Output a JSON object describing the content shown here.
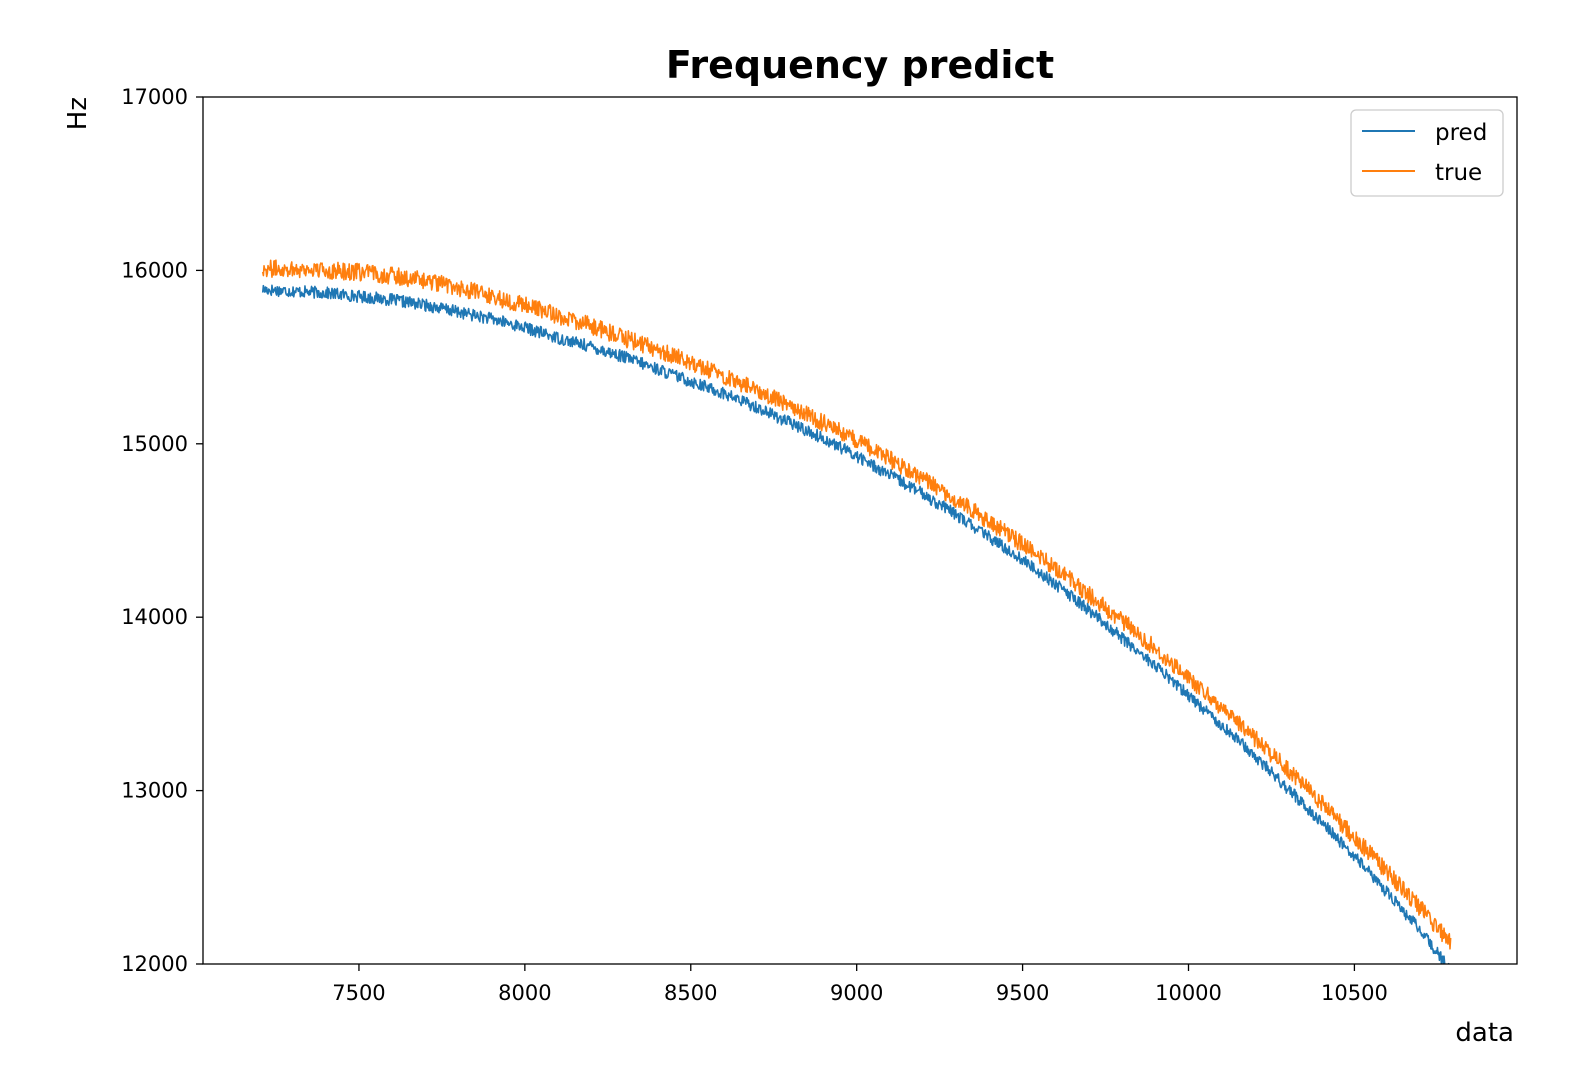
{
  "chart_data": {
    "type": "line",
    "title": "Frequency predict",
    "xlabel": "data",
    "ylabel": "Hz",
    "xlim": [
      7030,
      10990
    ],
    "ylim": [
      12000,
      17000
    ],
    "xticks": [
      7500,
      8000,
      8500,
      9000,
      9500,
      10000,
      10500
    ],
    "yticks": [
      12000,
      13000,
      14000,
      15000,
      16000,
      17000
    ],
    "x_range": [
      7210,
      10790
    ],
    "series": [
      {
        "name": "pred",
        "color": "#1f77b4",
        "x": [
          7210,
          7300,
          7400,
          7500,
          7600,
          7700,
          7800,
          7900,
          8000,
          8100,
          8200,
          8300,
          8400,
          8500,
          8600,
          8700,
          8800,
          8900,
          9000,
          9100,
          9200,
          9300,
          9400,
          9500,
          9600,
          9700,
          9800,
          9900,
          10000,
          10100,
          10200,
          10300,
          10400,
          10500,
          10600,
          10700,
          10790
        ],
        "y": [
          15890,
          15880,
          15870,
          15850,
          15830,
          15800,
          15760,
          15720,
          15670,
          15610,
          15560,
          15500,
          15430,
          15360,
          15290,
          15210,
          15120,
          15030,
          14930,
          14820,
          14710,
          14590,
          14460,
          14330,
          14190,
          14040,
          13880,
          13720,
          13550,
          13380,
          13200,
          13010,
          12820,
          12620,
          12410,
          12190,
          11960
        ],
        "noise_amplitude": 35
      },
      {
        "name": "true",
        "color": "#ff7f0e",
        "x": [
          7210,
          7300,
          7400,
          7500,
          7600,
          7700,
          7800,
          7900,
          8000,
          8100,
          8200,
          8300,
          8400,
          8500,
          8600,
          8700,
          8800,
          8900,
          9000,
          9100,
          9200,
          9300,
          9400,
          9500,
          9600,
          9700,
          9800,
          9900,
          10000,
          10100,
          10200,
          10300,
          10400,
          10500,
          10600,
          10700,
          10790
        ],
        "y": [
          16010,
          16010,
          16000,
          15990,
          15970,
          15940,
          15900,
          15850,
          15800,
          15740,
          15680,
          15610,
          15540,
          15470,
          15390,
          15310,
          15220,
          15120,
          15020,
          14910,
          14800,
          14680,
          14550,
          14420,
          14280,
          14130,
          13980,
          13820,
          13650,
          13480,
          13300,
          13120,
          12930,
          12730,
          12530,
          12320,
          12120
        ],
        "noise_amplitude": 50
      }
    ],
    "legend": {
      "position": "top-right",
      "entries": [
        "pred",
        "true"
      ]
    },
    "grid": false
  }
}
